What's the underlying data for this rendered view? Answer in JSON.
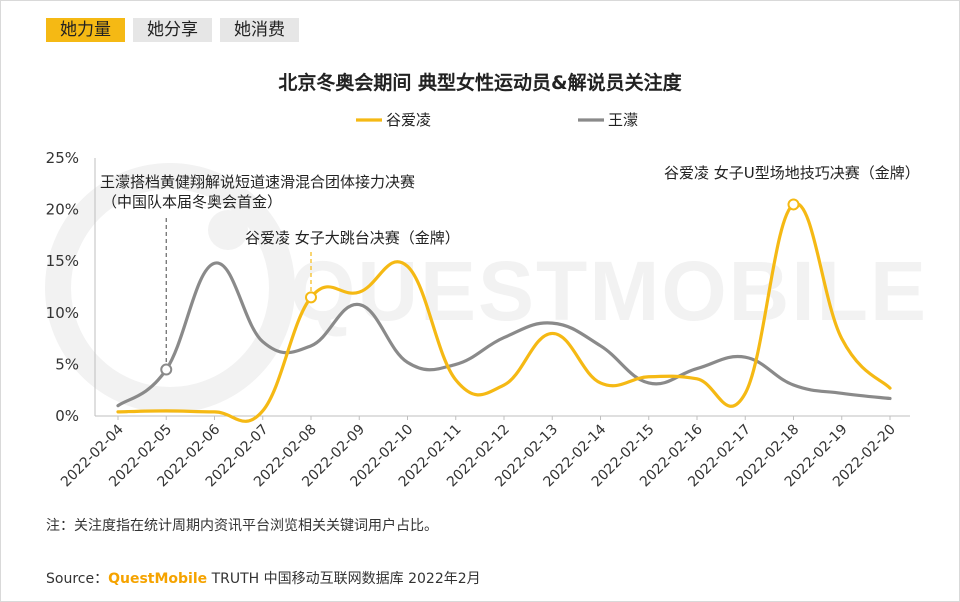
{
  "tabs": [
    "她力量",
    "她分享",
    "她消费"
  ],
  "colors": {
    "accent": "#f5b914",
    "series_yellow": "#f5b914",
    "series_gray": "#8a8a8a"
  },
  "watermark": "QUESTMOBILE",
  "note": "注：关注度指在统计周期内资讯平台浏览相关关键词用户占比。",
  "source": {
    "prefix": "Source：",
    "brand": "QuestMobile",
    "rest": " TRUTH 中国移动互联网数据库 2022年2月"
  },
  "chart_data": {
    "type": "line",
    "title": "北京冬奥会期间 典型女性运动员&解说员关注度",
    "x": [
      "2022-02-04",
      "2022-02-05",
      "2022-02-06",
      "2022-02-07",
      "2022-02-08",
      "2022-02-09",
      "2022-02-10",
      "2022-02-11",
      "2022-02-12",
      "2022-02-13",
      "2022-02-14",
      "2022-02-15",
      "2022-02-16",
      "2022-02-17",
      "2022-02-18",
      "2022-02-19",
      "2022-02-20"
    ],
    "yticks": [
      "0%",
      "5%",
      "10%",
      "15%",
      "20%",
      "25%"
    ],
    "ylim": [
      0,
      25
    ],
    "legend_position": "top",
    "series": [
      {
        "name": "谷爱凌",
        "color": "#f5b914",
        "values": [
          0.4,
          0.5,
          0.4,
          0.5,
          11.5,
          12.0,
          14.5,
          3.5,
          3.0,
          8.0,
          3.2,
          3.8,
          3.6,
          2.2,
          20.5,
          7.5,
          2.7
        ]
      },
      {
        "name": "王濛",
        "color": "#8a8a8a",
        "values": [
          1.0,
          4.5,
          14.8,
          7.2,
          6.8,
          10.8,
          5.2,
          5.0,
          7.6,
          9.0,
          6.8,
          3.2,
          4.6,
          5.7,
          3.0,
          2.2,
          1.7
        ]
      }
    ],
    "annotations": [
      {
        "text": "王濛搭档黄健翔解说短道速滑混合团体接力决赛",
        "text2": "（中国队本届冬奥会首金）",
        "series": 1,
        "index": 1
      },
      {
        "text": "谷爱凌 女子大跳台决赛（金牌）",
        "text2": "",
        "series": 0,
        "index": 4
      },
      {
        "text": "谷爱凌 女子U型场地技巧决赛（金牌）",
        "text2": "",
        "series": 0,
        "index": 14
      }
    ]
  }
}
